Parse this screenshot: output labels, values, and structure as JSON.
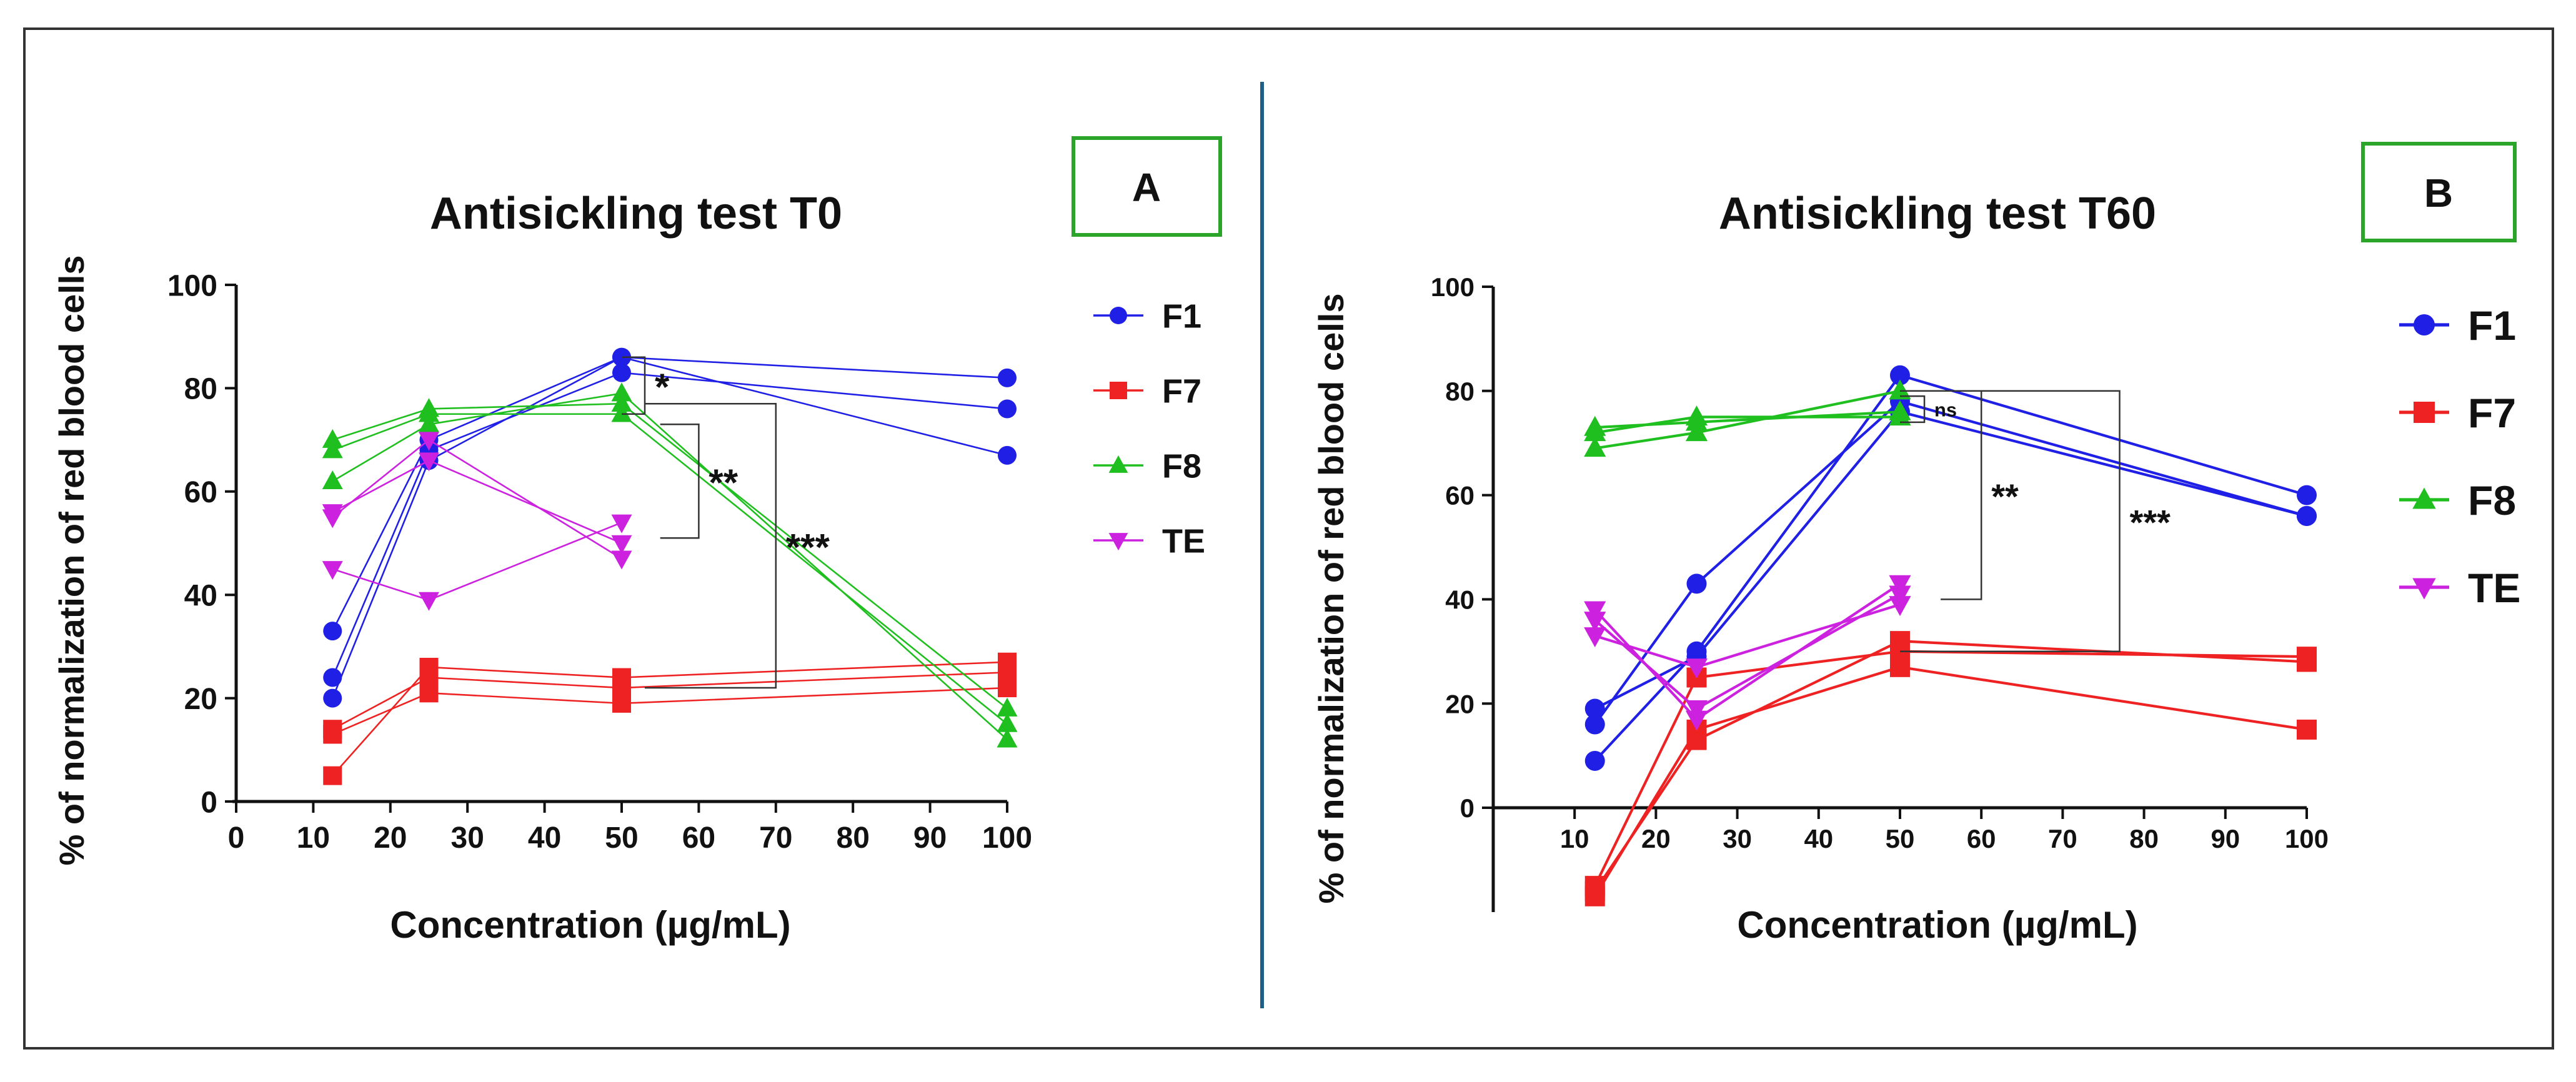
{
  "colors": {
    "F1": "#1f1fe6",
    "F7": "#ee2222",
    "F8": "#1fbf1f",
    "TE": "#cc22e0",
    "divider": "#1f5f86",
    "panel_box": "#2aa52a"
  },
  "chart_data": [
    {
      "panel": "A",
      "type": "line",
      "title": "Antisickling test T0",
      "xlabel": "Concentration (µg/mL)",
      "ylabel": "% of normalization of red blood cells",
      "xlim": [
        0,
        100
      ],
      "ylim": [
        0,
        100
      ],
      "xticks": [
        0,
        10,
        20,
        30,
        40,
        50,
        60,
        70,
        80,
        90,
        100
      ],
      "yticks": [
        0,
        20,
        40,
        60,
        80,
        100
      ],
      "x": [
        12.5,
        25,
        50,
        100
      ],
      "legend": [
        "F1",
        "F7",
        "F8",
        "TE"
      ],
      "series": [
        {
          "name": "F1",
          "marker": "circle",
          "replicates": [
            [
              20,
              66,
              86,
              82
            ],
            [
              24,
              68,
              83,
              76
            ],
            [
              33,
              70,
              86,
              67
            ]
          ]
        },
        {
          "name": "F7",
          "marker": "square",
          "replicates": [
            [
              5,
              26,
              24,
              27
            ],
            [
              13,
              21,
              19,
              22
            ],
            [
              14,
              24,
              22,
              25
            ]
          ]
        },
        {
          "name": "F8",
          "marker": "triangle-up",
          "replicates": [
            [
              62,
              73,
              79,
              12
            ],
            [
              68,
              75,
              75,
              15
            ],
            [
              70,
              76,
              77,
              18
            ]
          ]
        },
        {
          "name": "TE",
          "marker": "triangle-down",
          "replicates": [
            [
              45,
              39,
              54,
              null
            ],
            [
              55,
              70,
              47,
              null
            ],
            [
              56,
              66,
              50,
              null
            ]
          ]
        }
      ],
      "annotations": [
        {
          "label": "*",
          "x_from": 50,
          "x_to": 53,
          "y_from": 86,
          "y_to": 75
        },
        {
          "label": "**",
          "x_from": 55,
          "x_to": 60,
          "y_from": 73,
          "y_to": 51
        },
        {
          "label": "***",
          "x_from": 53,
          "x_to": 70,
          "y_from": 77,
          "y_to": 22
        }
      ]
    },
    {
      "panel": "B",
      "type": "line",
      "title": "Antisickling test T60",
      "xlabel": "Concentration (µg/mL)",
      "ylabel": "% of normalization of red blood cells",
      "xlim": [
        0,
        100
      ],
      "ylim": [
        -20,
        100
      ],
      "xticks": [
        10,
        20,
        30,
        40,
        50,
        60,
        70,
        80,
        90,
        100
      ],
      "yticks": [
        0,
        20,
        40,
        60,
        80,
        100
      ],
      "x": [
        12.5,
        25,
        50,
        100
      ],
      "legend": [
        "F1",
        "F7",
        "F8",
        "TE"
      ],
      "series": [
        {
          "name": "F1",
          "marker": "circle",
          "replicates": [
            [
              9,
              30,
              83,
              60
            ],
            [
              16,
              43,
              78,
              56
            ],
            [
              19,
              29,
              76,
              56
            ]
          ]
        },
        {
          "name": "F7",
          "marker": "square",
          "replicates": [
            [
              -16,
              13,
              32,
              28
            ],
            [
              -17,
              15,
              27,
              15
            ],
            [
              -15,
              25,
              30,
              29
            ]
          ]
        },
        {
          "name": "F8",
          "marker": "triangle-up",
          "replicates": [
            [
              69,
              72,
              80,
              null
            ],
            [
              72,
              75,
              75,
              null
            ],
            [
              73,
              74,
              76,
              null
            ]
          ]
        },
        {
          "name": "TE",
          "marker": "triangle-down",
          "replicates": [
            [
              38,
              17,
              43,
              null
            ],
            [
              33,
              27,
              39,
              null
            ],
            [
              36,
              19,
              41,
              null
            ]
          ]
        }
      ],
      "annotations": [
        {
          "label": "ns",
          "x_from": 50,
          "x_to": 53,
          "y_from": 79,
          "y_to": 74
        },
        {
          "label": "**",
          "x_from": 55,
          "x_to": 60,
          "y_from": 80,
          "y_to": 40
        },
        {
          "label": "***",
          "x_from": 50,
          "x_to": 77,
          "y_from": 80,
          "y_to": 30
        }
      ]
    }
  ]
}
